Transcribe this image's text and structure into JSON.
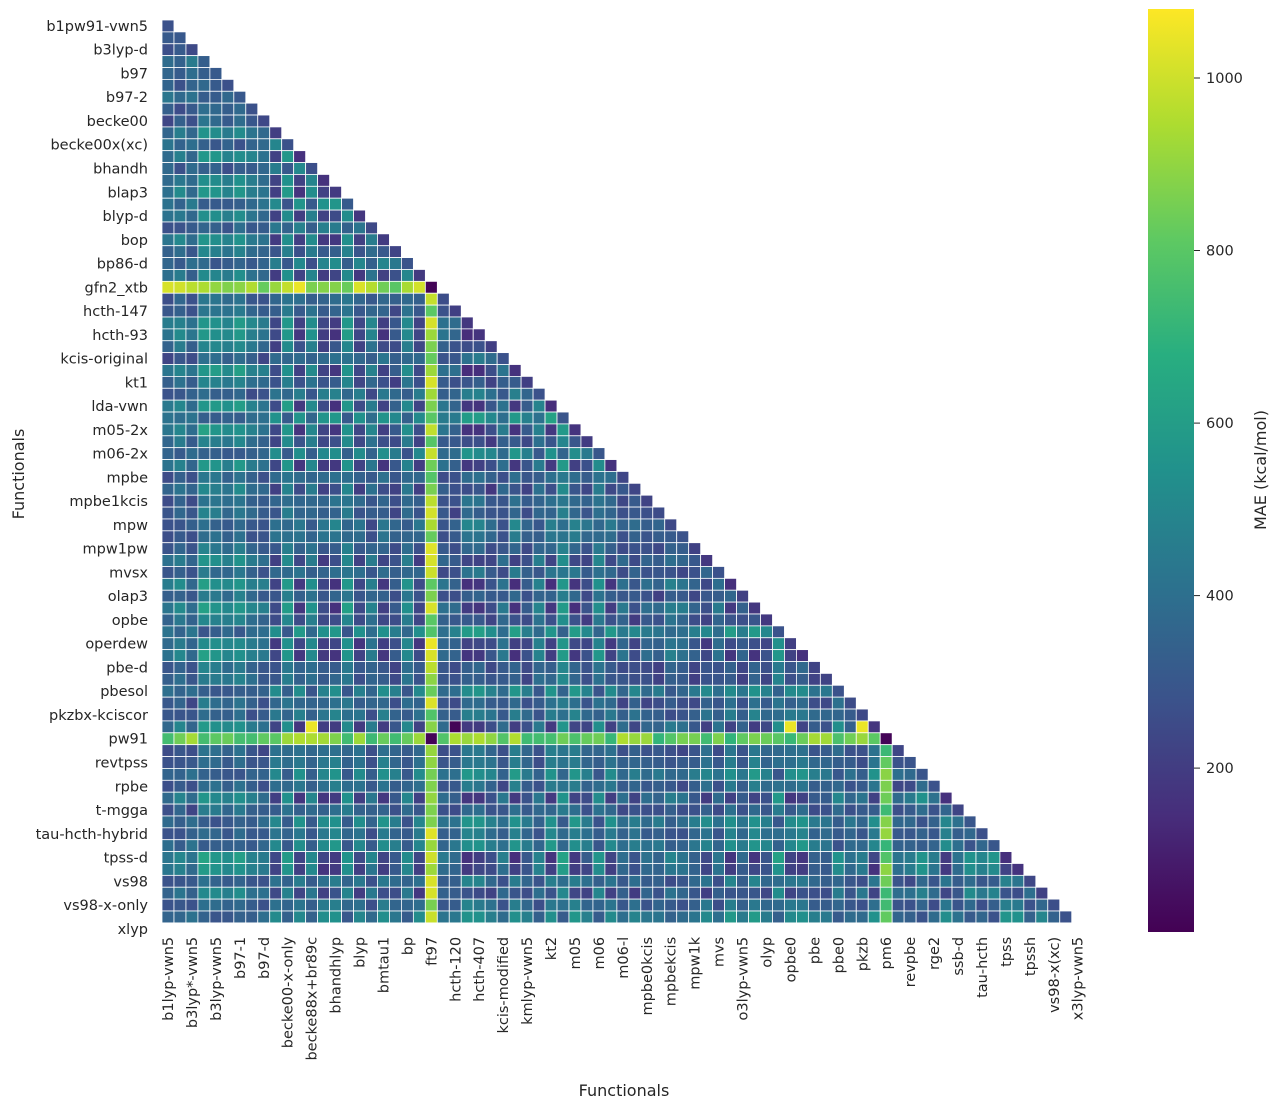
{
  "chart_data": {
    "type": "heatmap",
    "title": "",
    "xlabel": "Functionals",
    "ylabel": "Functionals",
    "colorbar": {
      "label": "MAE (kcal/mol)",
      "ticks": [
        200,
        400,
        600,
        800,
        1000
      ],
      "range": [
        10,
        1080
      ],
      "colormap": "viridis"
    },
    "mask": "upper-triangle",
    "cell_count": 38,
    "x_tick_labels": [
      "b1lyp-vwn5",
      "b3lyp*-vwn5",
      "b3lyp-vwn5",
      "b97-1",
      "b97-d",
      "becke00-x-only",
      "becke88x+br89c",
      "bhandhlyp",
      "blyp",
      "bmtau1",
      "bp",
      "ft97",
      "hcth-120",
      "hcth-407",
      "kcis-modified",
      "kmlyp-vwn5",
      "kt2",
      "m05",
      "m06",
      "m06-l",
      "mpbe0kcis",
      "mpbekcis",
      "mpw1k",
      "mvs",
      "o3lyp-vwn5",
      "olyp",
      "opbe0",
      "pbe",
      "pbe0",
      "pkzb",
      "pm6",
      "revpbe",
      "rge2",
      "ssb-d",
      "tau-hcth",
      "tpss",
      "tpssh",
      "vs98-x(xc)",
      "x3lyp-vwn5"
    ],
    "y_tick_labels": [
      "b1pw91-vwn5",
      "b3lyp-d",
      "b97",
      "b97-2",
      "becke00",
      "becke00x(xc)",
      "bhandh",
      "blap3",
      "blyp-d",
      "bop",
      "bp86-d",
      "gfn2_xtb",
      "hcth-147",
      "hcth-93",
      "kcis-original",
      "kt1",
      "lda-vwn",
      "m05-2x",
      "m06-2x",
      "mpbe",
      "mpbe1kcis",
      "mpw",
      "mpw1pw",
      "mvsx",
      "olap3",
      "opbe",
      "operdew",
      "pbe-d",
      "pbesol",
      "pkzbx-kciscor",
      "pw91",
      "revtpss",
      "rpbe",
      "t-mgga",
      "tau-hcth-hybrid",
      "tpss-d",
      "vs98",
      "vs98-x-only",
      "xlyp"
    ],
    "outlier_columns": [
      {
        "name": "gfn2_xtb",
        "value": 900
      },
      {
        "name": "pm6",
        "value": 820
      }
    ],
    "special_cells": [
      {
        "row": "pkzbx-kciscor",
        "col": "becke88x+br89c",
        "value": 1050
      },
      {
        "row": "pkzbx-kciscor",
        "col": "opbe0",
        "value": 1050
      },
      {
        "row": "pkzbx-kciscor",
        "col": "pkzb",
        "value": 1050
      },
      {
        "row": "pkzbx-kciscor",
        "col": "hcth-120",
        "value": 20
      }
    ]
  }
}
